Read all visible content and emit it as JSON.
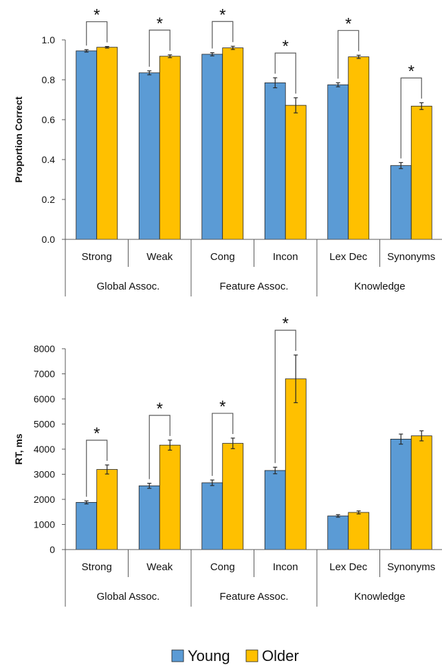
{
  "colors": {
    "young": "#5b9bd5",
    "older": "#ffc000",
    "bar_edge": "#1f1f1f",
    "axis": "#595959",
    "error": "#262626"
  },
  "legend": [
    {
      "name": "Young",
      "color": "#5b9bd5"
    },
    {
      "name": "Older",
      "color": "#ffc000"
    }
  ],
  "chart_data": [
    {
      "type": "bar",
      "ylabel": "Proportion Correct",
      "ylim": [
        0,
        1.0
      ],
      "yticks": [
        "0.0",
        "0.2",
        "0.4",
        "0.6",
        "0.8",
        "1.0"
      ],
      "categories": [
        "Strong",
        "Weak",
        "Cong",
        "Incon",
        "Lex Dec",
        "Synonyms"
      ],
      "groups": [
        {
          "label": "Global Assoc.",
          "categories": [
            "Strong",
            "Weak"
          ]
        },
        {
          "label": "Feature Assoc.",
          "categories": [
            "Cong",
            "Incon"
          ]
        },
        {
          "label": "Knowledge",
          "categories": [
            "Lex Dec",
            "Synonyms"
          ]
        }
      ],
      "series": [
        {
          "name": "Young",
          "values": [
            0.945,
            0.835,
            0.928,
            0.785,
            0.775,
            0.37
          ],
          "errors": [
            0.006,
            0.01,
            0.008,
            0.025,
            0.01,
            0.015
          ]
        },
        {
          "name": "Older",
          "values": [
            0.963,
            0.918,
            0.96,
            0.672,
            0.915,
            0.668
          ],
          "errors": [
            0.004,
            0.007,
            0.008,
            0.038,
            0.008,
            0.017
          ]
        }
      ],
      "significance": [
        true,
        true,
        true,
        true,
        true,
        true
      ],
      "significance_marker": "*"
    },
    {
      "type": "bar",
      "ylabel": "RT, ms",
      "ylim": [
        0,
        8000
      ],
      "yticks": [
        "0",
        "1000",
        "2000",
        "3000",
        "4000",
        "5000",
        "6000",
        "7000",
        "8000"
      ],
      "categories": [
        "Strong",
        "Weak",
        "Cong",
        "Incon",
        "Lex Dec",
        "Synonyms"
      ],
      "groups": [
        {
          "label": "Global Assoc.",
          "categories": [
            "Strong",
            "Weak"
          ]
        },
        {
          "label": "Feature Assoc.",
          "categories": [
            "Cong",
            "Incon"
          ]
        },
        {
          "label": "Knowledge",
          "categories": [
            "Lex Dec",
            "Synonyms"
          ]
        }
      ],
      "series": [
        {
          "name": "Young",
          "values": [
            1880,
            2540,
            2660,
            3150,
            1340,
            4400
          ],
          "errors": [
            60,
            100,
            110,
            130,
            50,
            200
          ]
        },
        {
          "name": "Older",
          "values": [
            3190,
            4160,
            4230,
            6800,
            1480,
            4530
          ],
          "errors": [
            180,
            200,
            210,
            950,
            60,
            200
          ]
        }
      ],
      "significance": [
        true,
        true,
        true,
        true,
        false,
        false
      ],
      "significance_marker": "*"
    }
  ]
}
